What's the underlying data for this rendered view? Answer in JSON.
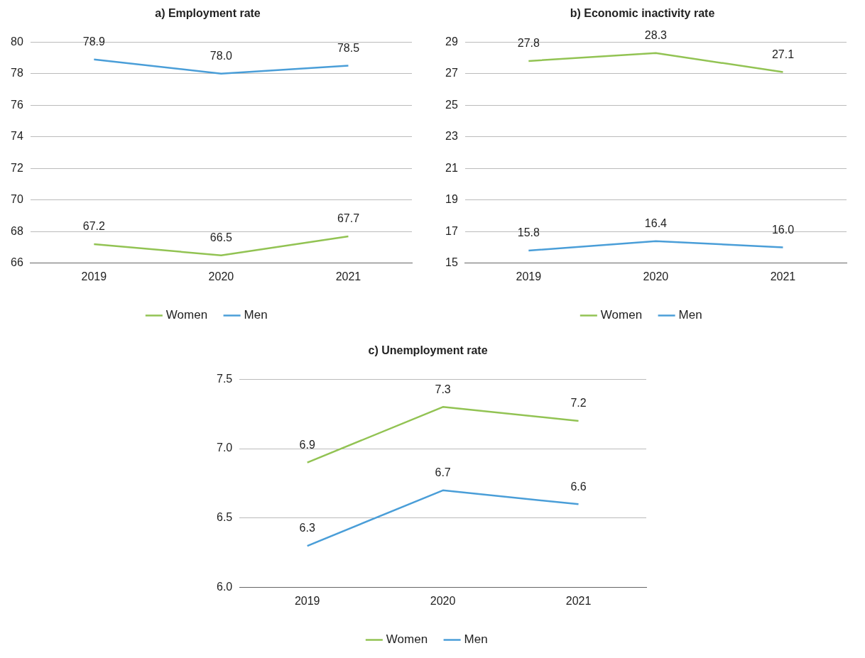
{
  "chart_data": [
    {
      "type": "line",
      "title": "a) Employment rate",
      "categories": [
        "2019",
        "2020",
        "2021"
      ],
      "series": [
        {
          "name": "Women",
          "color": "#92c353",
          "values": [
            67.2,
            66.5,
            67.7
          ],
          "value_labels": [
            "67.2",
            "66.5",
            "67.7"
          ]
        },
        {
          "name": "Men",
          "color": "#4a9ed8",
          "values": [
            78.9,
            78.0,
            78.5
          ],
          "value_labels": [
            "78.9",
            "78.0",
            "78.5"
          ]
        }
      ],
      "ylim": [
        66,
        80
      ],
      "yticks": [
        66,
        68,
        70,
        72,
        74,
        76,
        78,
        80
      ],
      "grid": "y",
      "legend": "bottom",
      "marker": "none",
      "line_style": "solid"
    },
    {
      "type": "line",
      "title": "b) Economic inactivity rate",
      "categories": [
        "2019",
        "2020",
        "2021"
      ],
      "series": [
        {
          "name": "Women",
          "color": "#92c353",
          "values": [
            27.8,
            28.3,
            27.1
          ],
          "value_labels": [
            "27.8",
            "28.3",
            "27.1"
          ]
        },
        {
          "name": "Men",
          "color": "#4a9ed8",
          "values": [
            15.8,
            16.4,
            16.0
          ],
          "value_labels": [
            "15.8",
            "16.4",
            "16.0"
          ]
        }
      ],
      "ylim": [
        15,
        29
      ],
      "yticks": [
        15,
        17,
        19,
        21,
        23,
        25,
        27,
        29
      ],
      "grid": "y",
      "legend": "bottom",
      "marker": "none",
      "line_style": "solid"
    },
    {
      "type": "line",
      "title": "c) Unemployment rate",
      "categories": [
        "2019",
        "2020",
        "2021"
      ],
      "series": [
        {
          "name": "Women",
          "color": "#92c353",
          "values": [
            6.9,
            7.3,
            7.2
          ],
          "value_labels": [
            "6.9",
            "7.3",
            "7.2"
          ]
        },
        {
          "name": "Men",
          "color": "#4a9ed8",
          "values": [
            6.3,
            6.7,
            6.6
          ],
          "value_labels": [
            "6.3",
            "6.7",
            "6.6"
          ]
        }
      ],
      "ylim": [
        6,
        7.5
      ],
      "yticks": [
        {
          "value": 6,
          "label": "6.0"
        },
        {
          "value": 6.5,
          "label": "6.5"
        },
        {
          "value": 7,
          "label": "7.0"
        },
        {
          "value": 7.5,
          "label": "7.5"
        }
      ],
      "grid": "y",
      "legend": "bottom",
      "marker": "none",
      "line_style": "solid"
    }
  ]
}
